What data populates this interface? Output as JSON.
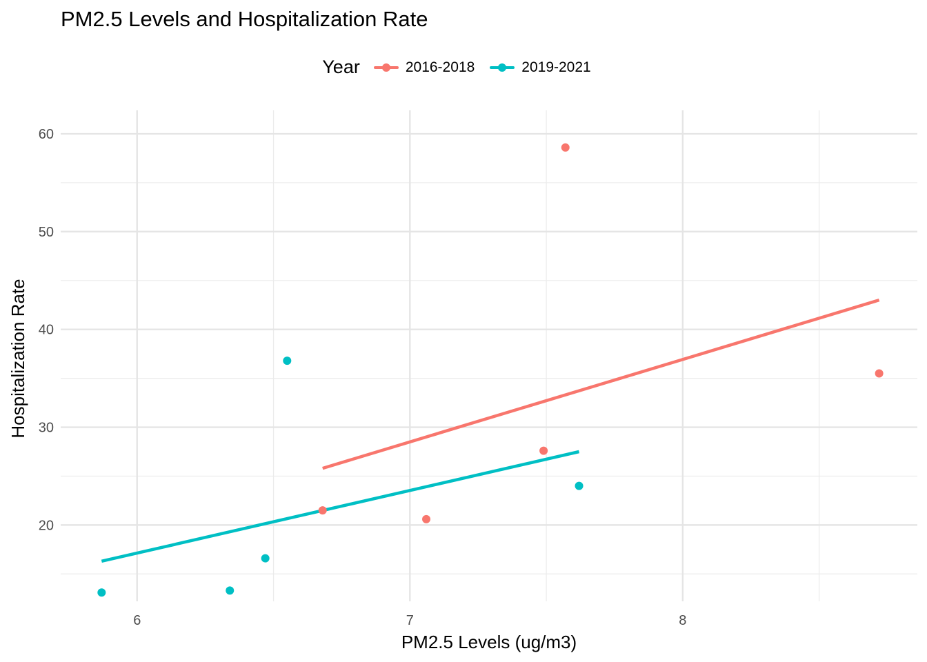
{
  "chart_data": {
    "type": "scatter",
    "title": "PM2.5 Levels and Hospitalization Rate",
    "xlabel": "PM2.5 Levels (ug/m3)",
    "ylabel": "Hospitalization Rate",
    "xlim": [
      5.72,
      8.86
    ],
    "ylim": [
      12.2,
      62.4
    ],
    "xticks": [
      6,
      7,
      8
    ],
    "yticks": [
      20,
      30,
      40,
      50,
      60
    ],
    "grid": true,
    "legend": {
      "title": "Year",
      "position": "top"
    },
    "series": [
      {
        "name": "2016-2018",
        "color": "#F8766D",
        "points": [
          {
            "x": 6.68,
            "y": 21.5
          },
          {
            "x": 7.06,
            "y": 20.6
          },
          {
            "x": 7.49,
            "y": 27.6
          },
          {
            "x": 7.57,
            "y": 58.6
          },
          {
            "x": 8.72,
            "y": 35.5
          }
        ],
        "trend": [
          {
            "x": 6.68,
            "y": 25.8
          },
          {
            "x": 8.72,
            "y": 43.0
          }
        ]
      },
      {
        "name": "2019-2021",
        "color": "#00BFC4",
        "points": [
          {
            "x": 5.87,
            "y": 13.1
          },
          {
            "x": 6.34,
            "y": 13.3
          },
          {
            "x": 6.47,
            "y": 16.6
          },
          {
            "x": 6.55,
            "y": 36.8
          },
          {
            "x": 7.62,
            "y": 24.0
          }
        ],
        "trend": [
          {
            "x": 5.87,
            "y": 16.3
          },
          {
            "x": 7.62,
            "y": 27.5
          }
        ]
      }
    ]
  }
}
